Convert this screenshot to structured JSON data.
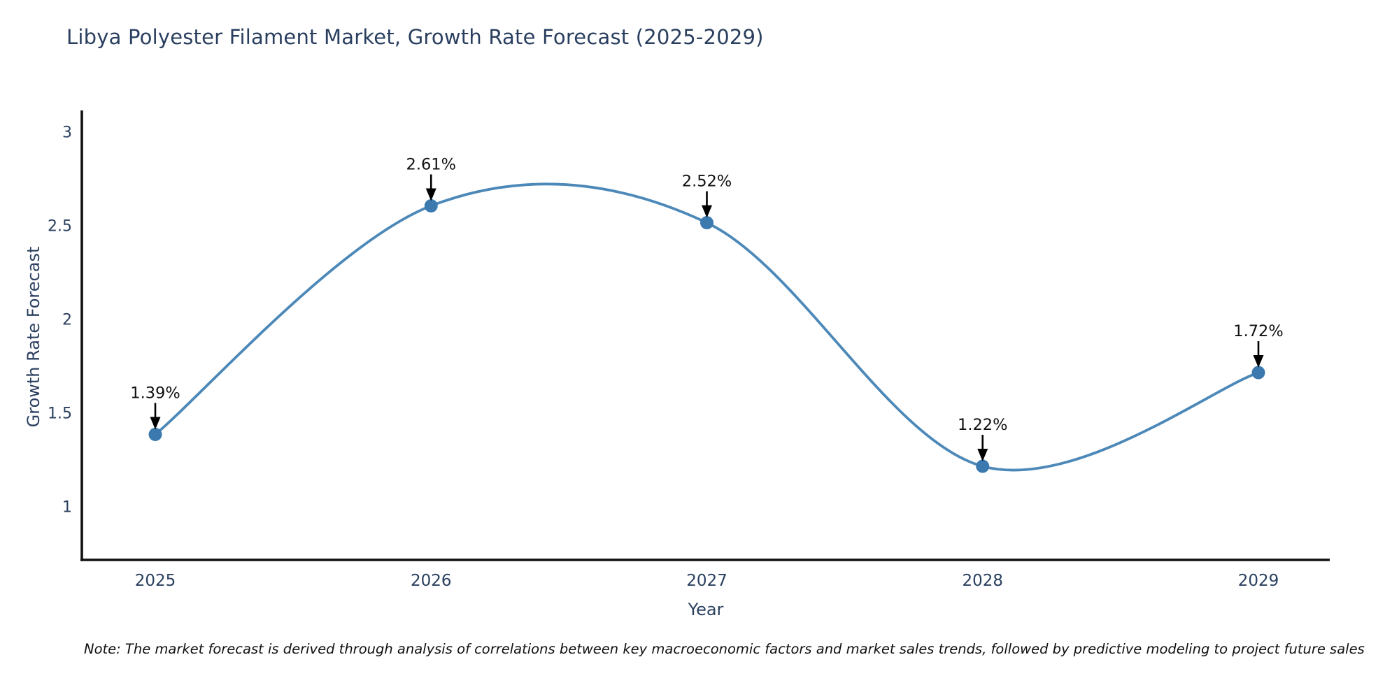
{
  "chart_data": {
    "type": "line",
    "title": "Libya Polyester Filament Market, Growth Rate Forecast (2025-2029)",
    "xlabel": "Year",
    "ylabel": "Growth Rate Forecast",
    "x": [
      "2025",
      "2026",
      "2027",
      "2028",
      "2029"
    ],
    "y": [
      1.39,
      2.61,
      2.52,
      1.22,
      1.72
    ],
    "point_labels": [
      "1.39%",
      "2.61%",
      "2.52%",
      "1.22%",
      "1.72%"
    ],
    "yticks": [
      "1",
      "1.5",
      "2",
      "2.5",
      "3"
    ],
    "ytick_values": [
      1,
      1.5,
      2,
      2.5,
      3
    ],
    "ylim": [
      0.72,
      3.1
    ],
    "line_shape": "spline",
    "grid": false,
    "legend_position": "none",
    "colors": {
      "line": "#4c88b8",
      "marker": "#3b79af",
      "axis": "#111111",
      "tick_text": "#2a3f5f",
      "title_text": "#2a3f5f",
      "annotation_text": "#111111",
      "arrow": "#000000"
    },
    "note": "Note: The market forecast is derived through analysis of correlations between key macroeconomic factors and market sales trends, followed by predictive modeling to project future sales"
  }
}
